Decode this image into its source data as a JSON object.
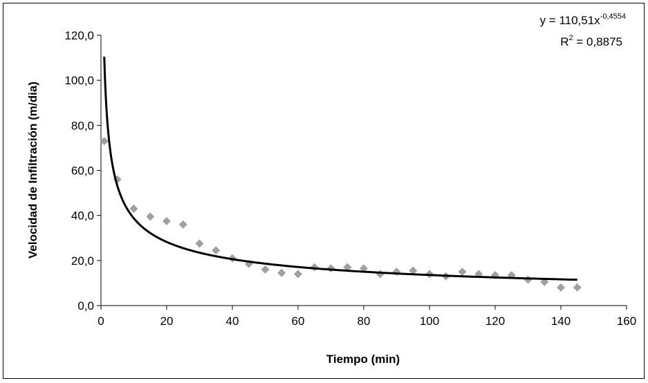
{
  "chart_data": {
    "type": "scatter",
    "title": "",
    "xlabel": "Tiempo (min)",
    "ylabel": "Velocidad de Infiltración (m/dia)",
    "xlim": [
      0,
      160
    ],
    "ylim": [
      0,
      120
    ],
    "x_ticks": [
      "0",
      "20",
      "40",
      "60",
      "80",
      "100",
      "120",
      "140",
      "160"
    ],
    "y_ticks": [
      "0,0",
      "20,0",
      "40,0",
      "60,0",
      "80,0",
      "100,0",
      "120,0"
    ],
    "grid": false,
    "legend": "none",
    "colors": {
      "points": "#a0a0a0",
      "trendline": "#000000"
    },
    "series": [
      {
        "type": "scatter",
        "marker": "diamond",
        "x": [
          1,
          5,
          10,
          15,
          20,
          25,
          30,
          35,
          40,
          45,
          50,
          55,
          60,
          65,
          70,
          75,
          80,
          85,
          90,
          95,
          100,
          105,
          110,
          115,
          120,
          125,
          130,
          135,
          140,
          145
        ],
        "y": [
          73.0,
          56.0,
          43.0,
          39.5,
          37.5,
          36.0,
          27.5,
          24.5,
          21.0,
          18.5,
          16.0,
          14.5,
          14.0,
          17.0,
          16.5,
          17.0,
          16.5,
          14.0,
          15.0,
          15.5,
          14.0,
          13.0,
          15.0,
          14.0,
          13.5,
          13.5,
          11.5,
          10.5,
          8.0,
          8.0
        ]
      },
      {
        "type": "line",
        "fit": "power",
        "coefficient": 110.51,
        "exponent": -0.4554,
        "x_range": [
          1,
          145
        ]
      }
    ],
    "annotations": {
      "equation_prefix": "y = 110,51x",
      "equation_exponent": "-0,4554",
      "r2_prefix": "R",
      "r2_sup": "2",
      "r2_value": " = 0,8875"
    }
  }
}
